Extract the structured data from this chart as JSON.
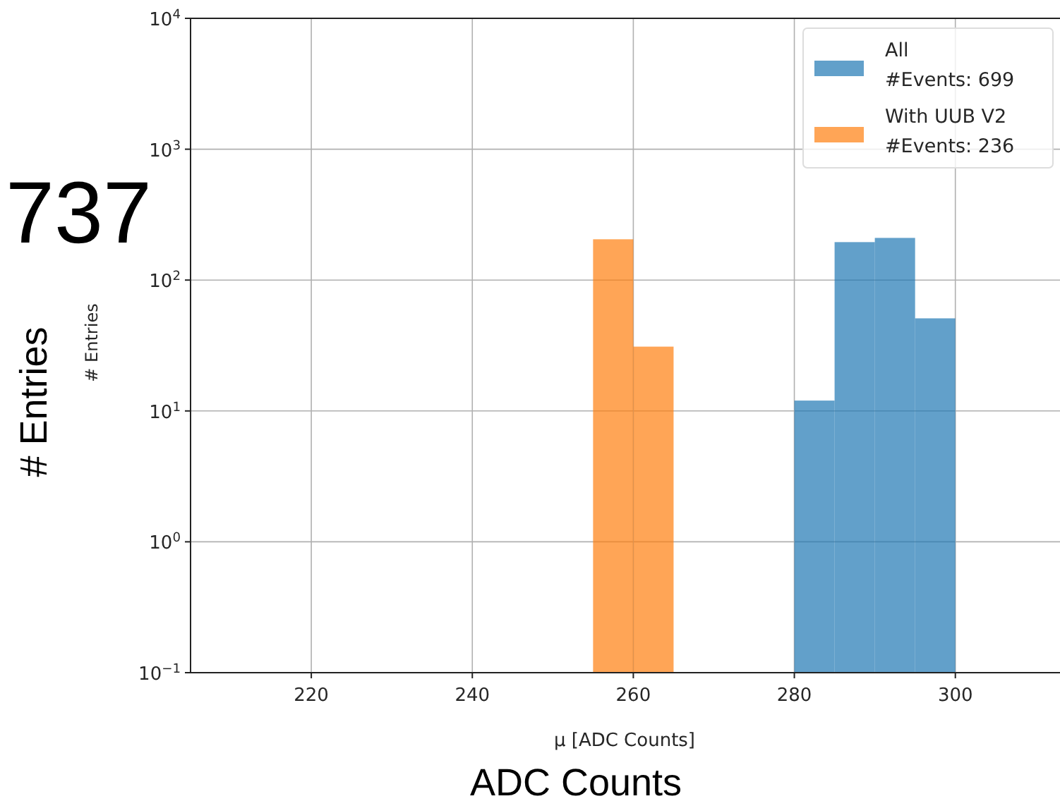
{
  "chart_data": {
    "type": "histogram",
    "xlabel": "μ [ADC Counts]",
    "ylabel": "# Entries",
    "annotations": [
      "737",
      "# Entries",
      "ADC Counts"
    ],
    "bins": [
      255,
      260,
      265,
      270,
      275,
      280,
      285,
      290,
      295,
      300
    ],
    "series": [
      {
        "name": "All\n#Events: 699",
        "color": "#1f77b4",
        "values": [
          null,
          null,
          null,
          null,
          null,
          12,
          195,
          210,
          51
        ]
      },
      {
        "name": "With UUB V2\n#Events: 236",
        "color": "#ff7f0e",
        "values": [
          205,
          31,
          null,
          null,
          null,
          null,
          null,
          null,
          null
        ]
      }
    ],
    "log": "y",
    "xlim": [
      205,
      313
    ],
    "ylim": [
      0.1,
      10000
    ],
    "xticks": [
      220,
      240,
      260,
      280,
      300
    ],
    "yticks": [
      {
        "value": 0.1,
        "label": "10$^{−1}$"
      },
      {
        "value": 1,
        "label": "10$^{0}$"
      },
      {
        "value": 10,
        "label": "10$^{1}$"
      },
      {
        "value": 100,
        "label": "10$^{2}$"
      },
      {
        "value": 1000,
        "label": "10$^{3}$"
      },
      {
        "value": 10000,
        "label": "10$^{4}$"
      }
    ],
    "grid": true,
    "legend": "top right"
  }
}
